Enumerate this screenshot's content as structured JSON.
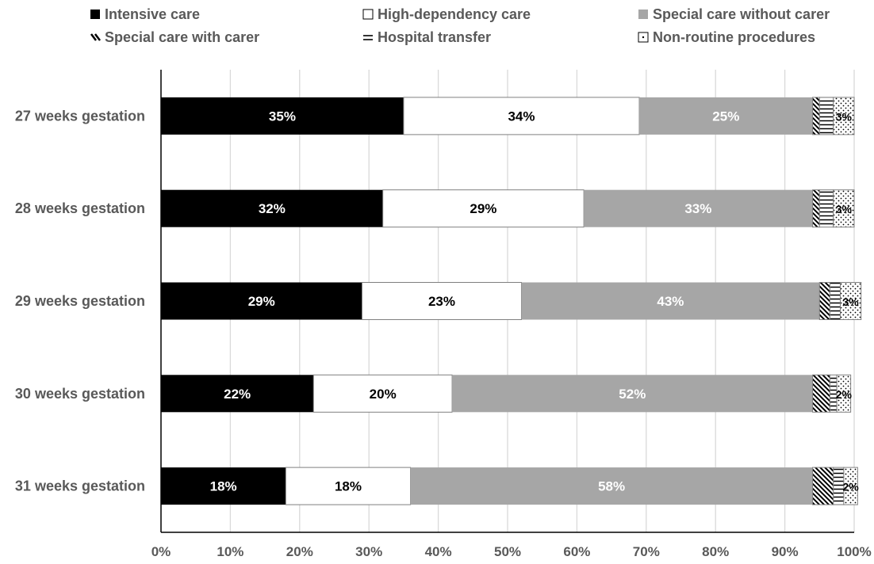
{
  "chart_data": {
    "type": "bar",
    "orientation": "horizontal",
    "stacked": true,
    "percent_stacked": true,
    "categories": [
      "27 weeks gestation",
      "28 weeks gestation",
      "29 weeks gestation",
      "30 weeks gestation",
      "31 weeks gestation"
    ],
    "series": [
      {
        "name": "Intensive care",
        "values": [
          35,
          32,
          29,
          22,
          18
        ],
        "labels": [
          "35%",
          "32%",
          "29%",
          "22%",
          "18%"
        ],
        "fill": "solid",
        "color": "#000000",
        "label_color": "#ffffff"
      },
      {
        "name": "High-dependency care",
        "values": [
          34,
          29,
          23,
          20,
          18
        ],
        "labels": [
          "34%",
          "29%",
          "23%",
          "20%",
          "18%"
        ],
        "fill": "solid",
        "color": "#ffffff",
        "label_color": "#000000"
      },
      {
        "name": "Special care without carer",
        "values": [
          25,
          33,
          43,
          52,
          58
        ],
        "labels": [
          "25%",
          "33%",
          "43%",
          "52%",
          "58%"
        ],
        "fill": "solid",
        "color": "#a6a6a6",
        "label_color": "#ffffff"
      },
      {
        "name": "Special care with carer",
        "values": [
          1,
          1,
          1.5,
          2.5,
          3
        ],
        "labels": [
          "",
          "",
          "",
          "",
          ""
        ],
        "fill": "diagonal",
        "color": "#000000",
        "label_color": "#000000"
      },
      {
        "name": "Hospital transfer",
        "values": [
          2,
          2,
          1.5,
          1,
          1.5
        ],
        "labels": [
          "",
          "",
          "",
          "",
          ""
        ],
        "fill": "horizontal",
        "color": "#000000",
        "label_color": "#000000"
      },
      {
        "name": "Non-routine procedures",
        "values": [
          3,
          3,
          3,
          2,
          2
        ],
        "labels": [
          "3%",
          "3%",
          "3%",
          "2%",
          "2%"
        ],
        "fill": "dotted",
        "color": "#000000",
        "label_color": "#000000"
      }
    ],
    "xlim": [
      0,
      100
    ],
    "xticks": [
      "0%",
      "10%",
      "20%",
      "30%",
      "40%",
      "50%",
      "60%",
      "70%",
      "80%",
      "90%",
      "100%"
    ],
    "grid": "vertical",
    "legend_position": "top",
    "title": "",
    "xlabel": "",
    "ylabel": ""
  }
}
